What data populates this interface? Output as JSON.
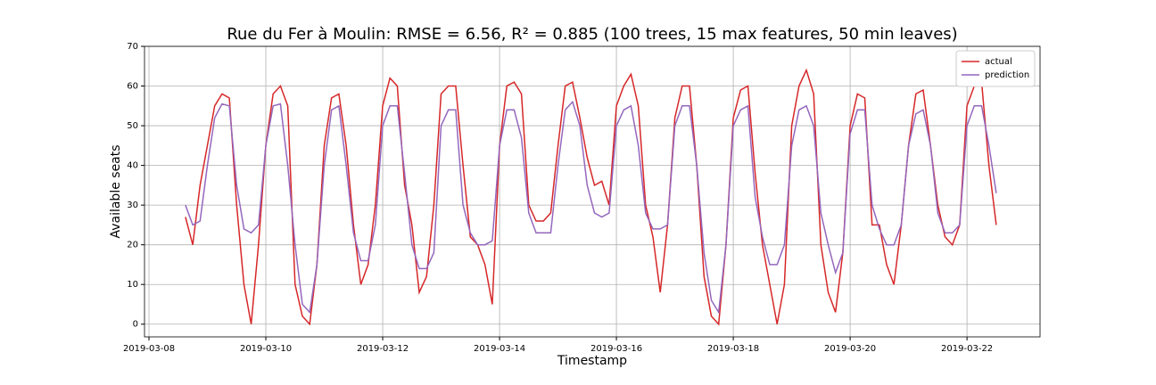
{
  "chart_data": {
    "type": "line",
    "title": "Rue du Fer à Moulin: RMSE = 6.56, R² = 0.885 (100 trees, 15 max features, 50 min leaves)",
    "xlabel": "Timestamp",
    "ylabel": "Available seats",
    "x": [
      "2019-03-08 15:00",
      "2019-03-08 18:00",
      "2019-03-08 21:00",
      "2019-03-09 00:00",
      "2019-03-09 03:00",
      "2019-03-09 06:00",
      "2019-03-09 09:00",
      "2019-03-09 12:00",
      "2019-03-09 15:00",
      "2019-03-09 18:00",
      "2019-03-09 21:00",
      "2019-03-10 00:00",
      "2019-03-10 03:00",
      "2019-03-10 06:00",
      "2019-03-10 09:00",
      "2019-03-10 12:00",
      "2019-03-10 15:00",
      "2019-03-10 18:00",
      "2019-03-10 21:00",
      "2019-03-11 00:00",
      "2019-03-11 03:00",
      "2019-03-11 06:00",
      "2019-03-11 09:00",
      "2019-03-11 12:00",
      "2019-03-11 15:00",
      "2019-03-11 18:00",
      "2019-03-11 21:00",
      "2019-03-12 00:00",
      "2019-03-12 03:00",
      "2019-03-12 06:00",
      "2019-03-12 09:00",
      "2019-03-12 12:00",
      "2019-03-12 15:00",
      "2019-03-12 18:00",
      "2019-03-12 21:00",
      "2019-03-13 00:00",
      "2019-03-13 03:00",
      "2019-03-13 06:00",
      "2019-03-13 09:00",
      "2019-03-13 12:00",
      "2019-03-13 15:00",
      "2019-03-13 18:00",
      "2019-03-13 21:00",
      "2019-03-14 00:00",
      "2019-03-14 03:00",
      "2019-03-14 06:00",
      "2019-03-14 09:00",
      "2019-03-14 12:00",
      "2019-03-14 15:00",
      "2019-03-14 18:00",
      "2019-03-14 21:00",
      "2019-03-15 00:00",
      "2019-03-15 03:00",
      "2019-03-15 06:00",
      "2019-03-15 09:00",
      "2019-03-15 12:00",
      "2019-03-15 15:00",
      "2019-03-15 18:00",
      "2019-03-15 21:00",
      "2019-03-16 00:00",
      "2019-03-16 03:00",
      "2019-03-16 06:00",
      "2019-03-16 09:00",
      "2019-03-16 12:00",
      "2019-03-16 15:00",
      "2019-03-16 18:00",
      "2019-03-16 21:00",
      "2019-03-17 00:00",
      "2019-03-17 03:00",
      "2019-03-17 06:00",
      "2019-03-17 09:00",
      "2019-03-17 12:00",
      "2019-03-17 15:00",
      "2019-03-17 18:00",
      "2019-03-17 21:00",
      "2019-03-18 00:00",
      "2019-03-18 03:00",
      "2019-03-18 06:00",
      "2019-03-18 09:00",
      "2019-03-18 12:00",
      "2019-03-18 15:00",
      "2019-03-18 18:00",
      "2019-03-18 21:00",
      "2019-03-19 00:00",
      "2019-03-19 03:00",
      "2019-03-19 06:00",
      "2019-03-19 09:00",
      "2019-03-19 12:00",
      "2019-03-19 15:00",
      "2019-03-19 18:00",
      "2019-03-19 21:00",
      "2019-03-20 00:00",
      "2019-03-20 03:00",
      "2019-03-20 06:00",
      "2019-03-20 09:00",
      "2019-03-20 12:00",
      "2019-03-20 15:00",
      "2019-03-20 18:00",
      "2019-03-20 21:00",
      "2019-03-21 00:00",
      "2019-03-21 03:00",
      "2019-03-21 06:00",
      "2019-03-21 09:00",
      "2019-03-21 12:00",
      "2019-03-21 15:00",
      "2019-03-21 18:00",
      "2019-03-21 21:00",
      "2019-03-22 00:00",
      "2019-03-22 03:00",
      "2019-03-22 06:00",
      "2019-03-22 09:00",
      "2019-03-22 12:00"
    ],
    "series": [
      {
        "name": "actual",
        "color": "#d62728",
        "values": [
          27,
          20,
          35,
          45,
          55,
          58,
          57,
          30,
          10,
          0,
          20,
          45,
          58,
          60,
          55,
          10,
          2,
          0,
          15,
          45,
          57,
          58,
          45,
          25,
          10,
          15,
          30,
          55,
          62,
          60,
          35,
          25,
          8,
          12,
          30,
          58,
          60,
          60,
          40,
          22,
          20,
          15,
          5,
          45,
          60,
          61,
          58,
          30,
          26,
          26,
          28,
          45,
          60,
          61,
          52,
          42,
          35,
          36,
          30,
          55,
          60,
          63,
          55,
          30,
          22,
          8,
          25,
          52,
          60,
          60,
          40,
          12,
          2,
          0,
          20,
          52,
          59,
          60,
          38,
          20,
          10,
          0,
          10,
          50,
          60,
          64,
          58,
          20,
          8,
          3,
          18,
          50,
          58,
          57,
          25,
          25,
          15,
          10,
          25,
          45,
          58,
          59,
          45,
          30,
          22,
          20,
          25,
          55,
          60,
          61,
          40,
          25
        ]
      },
      {
        "name": "prediction",
        "color": "#9467bd",
        "values": [
          30,
          25,
          26,
          40,
          52,
          55.5,
          55,
          35,
          24,
          23,
          25,
          45,
          55,
          55.5,
          40,
          20,
          5,
          3,
          15,
          40,
          54,
          55,
          40,
          23,
          16,
          16,
          25,
          50,
          55,
          55,
          38,
          20,
          14,
          14,
          18,
          50,
          54,
          54,
          30,
          23,
          20,
          20,
          21,
          45,
          54,
          54,
          47,
          28,
          23,
          23,
          23,
          40,
          54,
          56,
          50,
          35,
          28,
          27,
          28,
          50,
          54,
          55,
          45,
          28,
          24,
          24,
          25,
          50,
          55,
          55,
          40,
          18,
          6,
          3,
          20,
          50,
          54,
          55,
          32,
          22,
          15,
          15,
          20,
          45,
          54,
          55,
          50,
          28,
          20,
          13,
          18,
          48,
          54,
          54,
          30,
          24,
          20,
          20,
          25,
          45,
          53,
          54,
          45,
          28,
          23,
          23,
          25,
          50,
          55,
          55,
          45,
          33
        ]
      }
    ],
    "xlim": [
      "2019-03-07 22:10",
      "2019-03-23 06:00"
    ],
    "xticks": [
      "2019-03-08",
      "2019-03-10",
      "2019-03-12",
      "2019-03-14",
      "2019-03-16",
      "2019-03-18",
      "2019-03-20",
      "2019-03-22"
    ],
    "ylim": [
      -3.2,
      70
    ],
    "yticks": [
      0,
      10,
      20,
      30,
      40,
      50,
      60,
      70
    ],
    "grid": true,
    "legend": "upper right"
  }
}
